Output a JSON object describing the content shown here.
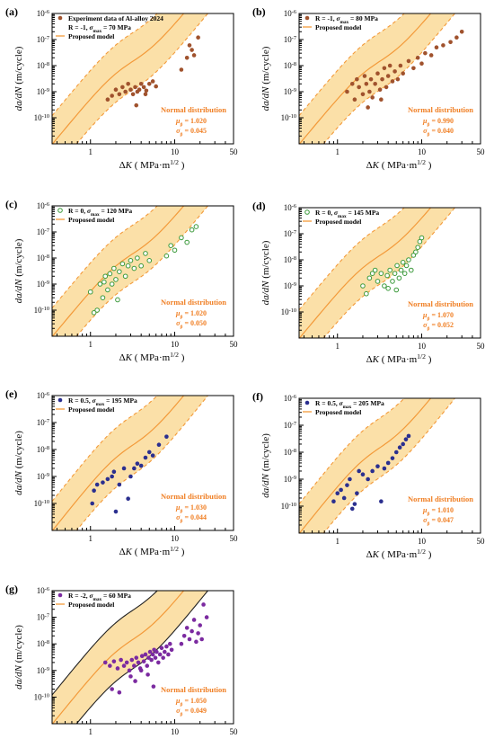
{
  "colors": {
    "band_fill": "#fbe0a8",
    "curve": "#f39a3a",
    "dist_text": "#f07f24",
    "axis": "#000000"
  },
  "chart_data": [
    {
      "type": "scatter",
      "panel_label": "(a)",
      "legend": [
        "Experiment data of Al-alloy 2024",
        "R = -1, σmax = 70 MPa",
        "Proposed model"
      ],
      "xlabel": "ΔK ( MPa·m^1/2 )",
      "ylabel": "da/dN (m/cycle)",
      "x_scale": "log",
      "y_scale": "log",
      "xlim": [
        0.35,
        50
      ],
      "ylim": [
        1e-11,
        1e-06
      ],
      "x_ticks": [
        "1",
        "10",
        "50"
      ],
      "y_ticks": [
        "10^-10",
        "10^-9",
        "10^-8",
        "10^-7",
        "10^-6"
      ],
      "annotation": {
        "title": "Normal distribution",
        "mu": "μβ = 1.020",
        "sigma": "σβ = 0.045"
      },
      "marker": {
        "style": "filled",
        "color": "#a0522d"
      },
      "band_style": "dashed",
      "points": [
        [
          1.6,
          5e-10
        ],
        [
          1.8,
          7e-10
        ],
        [
          2.0,
          1.2e-09
        ],
        [
          2.2,
          8e-10
        ],
        [
          2.4,
          1.5e-09
        ],
        [
          2.6,
          1e-09
        ],
        [
          2.8,
          2e-09
        ],
        [
          3.0,
          1.2e-09
        ],
        [
          3.2,
          8e-10
        ],
        [
          3.4,
          1.5e-09
        ],
        [
          3.6,
          1e-09
        ],
        [
          3.8,
          1.2e-09
        ],
        [
          4.0,
          2e-09
        ],
        [
          4.3,
          1.5e-09
        ],
        [
          4.6,
          1.1e-09
        ],
        [
          5.0,
          2e-09
        ],
        [
          5.5,
          2.5e-09
        ],
        [
          6.0,
          1.6e-09
        ],
        [
          4.5,
          8e-10
        ],
        [
          3.5,
          3e-10
        ],
        [
          12,
          7e-09
        ],
        [
          14,
          2e-08
        ],
        [
          15,
          6e-08
        ],
        [
          17,
          2.5e-08
        ],
        [
          19,
          1.2e-07
        ],
        [
          16,
          4e-08
        ]
      ]
    },
    {
      "type": "scatter",
      "panel_label": "(b)",
      "legend": [
        "R = -1, σmax = 80 MPa",
        "Proposed model"
      ],
      "xlabel": "ΔK ( MPa·m^1/2 )",
      "ylabel": "da/dN (m/cycle)",
      "x_scale": "log",
      "y_scale": "log",
      "xlim": [
        0.35,
        50
      ],
      "ylim": [
        1e-11,
        1e-06
      ],
      "x_ticks": [
        "1",
        "10",
        "50"
      ],
      "y_ticks": [
        "10^-10",
        "10^-9",
        "10^-8",
        "10^-7",
        "10^-6"
      ],
      "annotation": {
        "title": "Normal distribution",
        "mu": "μβ = 0.990",
        "sigma": "σβ = 0.040"
      },
      "marker": {
        "style": "filled",
        "color": "#a0522d"
      },
      "band_style": "dashed",
      "points": [
        [
          1.3,
          1e-09
        ],
        [
          1.5,
          2e-09
        ],
        [
          1.6,
          5e-10
        ],
        [
          1.7,
          3e-09
        ],
        [
          1.8,
          1.5e-09
        ],
        [
          2.0,
          8e-10
        ],
        [
          2.1,
          4e-09
        ],
        [
          2.2,
          2e-09
        ],
        [
          2.4,
          1e-09
        ],
        [
          2.5,
          3e-09
        ],
        [
          2.6,
          6e-10
        ],
        [
          2.8,
          2e-09
        ],
        [
          3.0,
          5e-09
        ],
        [
          3.2,
          1.2e-09
        ],
        [
          3.4,
          3e-09
        ],
        [
          3.6,
          8e-09
        ],
        [
          3.8,
          1.5e-09
        ],
        [
          4.0,
          4e-09
        ],
        [
          4.2,
          1e-08
        ],
        [
          4.5,
          2.5e-09
        ],
        [
          4.8,
          6e-09
        ],
        [
          5.2,
          3e-09
        ],
        [
          5.6,
          1e-08
        ],
        [
          6.0,
          5e-09
        ],
        [
          3.3,
          5e-10
        ],
        [
          2.3,
          2.5e-10
        ],
        [
          7,
          1.5e-08
        ],
        [
          8,
          8e-09
        ],
        [
          9,
          2e-08
        ],
        [
          10,
          1.2e-08
        ],
        [
          11,
          3e-08
        ],
        [
          13,
          2.5e-08
        ],
        [
          15,
          5e-08
        ],
        [
          18,
          6e-08
        ],
        [
          22,
          8e-08
        ],
        [
          26,
          1.2e-07
        ],
        [
          30,
          2e-07
        ]
      ]
    },
    {
      "type": "scatter",
      "panel_label": "(c)",
      "legend": [
        "R = 0, σmax = 120 MPa",
        "Proposed model"
      ],
      "xlabel": "ΔK ( MPa·m^1/2 )",
      "ylabel": "da/dN (m/cycle)",
      "x_scale": "log",
      "y_scale": "log",
      "xlim": [
        0.35,
        50
      ],
      "ylim": [
        1e-11,
        1e-06
      ],
      "x_ticks": [
        "1",
        "10",
        "50"
      ],
      "y_ticks": [
        "10^-10",
        "10^-9",
        "10^-8",
        "10^-7",
        "10^-6"
      ],
      "annotation": {
        "title": "Normal distribution",
        "mu": "μβ = 1.020",
        "sigma": "σβ = 0.050"
      },
      "marker": {
        "style": "open",
        "color": "#3c9a3c"
      },
      "band_style": "dashed",
      "points": [
        [
          1.0,
          5e-10
        ],
        [
          1.1,
          8e-11
        ],
        [
          1.2,
          1e-10
        ],
        [
          1.3,
          1e-09
        ],
        [
          1.4,
          3e-10
        ],
        [
          1.5,
          2e-09
        ],
        [
          1.6,
          6e-10
        ],
        [
          1.7,
          2.5e-09
        ],
        [
          1.8,
          1e-09
        ],
        [
          1.9,
          4e-09
        ],
        [
          2.0,
          1.5e-09
        ],
        [
          2.2,
          3e-09
        ],
        [
          2.4,
          6e-09
        ],
        [
          2.6,
          2e-09
        ],
        [
          2.8,
          5e-09
        ],
        [
          3.0,
          8e-09
        ],
        [
          3.3,
          4e-09
        ],
        [
          3.6,
          1e-08
        ],
        [
          4.0,
          5e-09
        ],
        [
          4.5,
          1.5e-08
        ],
        [
          5.0,
          8e-09
        ],
        [
          2.1,
          2.5e-10
        ],
        [
          1.45,
          1.2e-09
        ],
        [
          8,
          1.2e-08
        ],
        [
          9,
          3e-08
        ],
        [
          10,
          2e-08
        ],
        [
          12,
          6e-08
        ],
        [
          14,
          4e-08
        ],
        [
          16,
          1.2e-07
        ],
        [
          18,
          1.6e-07
        ]
      ]
    },
    {
      "type": "scatter",
      "panel_label": "(d)",
      "legend": [
        "R = 0, σmax = 145 MPa",
        "Proposed model"
      ],
      "xlabel": "ΔK ( MPa·m^1/2 )",
      "ylabel": "da/dN (m/cycle)",
      "x_scale": "log",
      "y_scale": "log",
      "xlim": [
        0.35,
        50
      ],
      "ylim": [
        1e-11,
        1e-06
      ],
      "x_ticks": [
        "1",
        "10",
        "50"
      ],
      "y_ticks": [
        "10^-10",
        "10^-9",
        "10^-8",
        "10^-7",
        "10^-6"
      ],
      "annotation": {
        "title": "Normal distribution",
        "mu": "μβ = 1.070",
        "sigma": "σβ = 0.052"
      },
      "marker": {
        "style": "open",
        "color": "#3c9a3c"
      },
      "band_style": "dashed",
      "points": [
        [
          2.0,
          1e-09
        ],
        [
          2.2,
          5e-10
        ],
        [
          2.4,
          2e-09
        ],
        [
          2.6,
          3e-09
        ],
        [
          2.8,
          4e-09
        ],
        [
          3.0,
          1.5e-09
        ],
        [
          3.3,
          3e-09
        ],
        [
          3.6,
          1e-09
        ],
        [
          3.9,
          2.5e-09
        ],
        [
          4.2,
          4e-09
        ],
        [
          4.5,
          1.5e-09
        ],
        [
          4.8,
          3e-09
        ],
        [
          5.1,
          6e-09
        ],
        [
          5.4,
          2e-09
        ],
        [
          5.7,
          4e-09
        ],
        [
          6.0,
          8e-09
        ],
        [
          6.3,
          3e-09
        ],
        [
          6.6,
          6e-09
        ],
        [
          7.0,
          1e-08
        ],
        [
          7.5,
          4e-09
        ],
        [
          8.0,
          1.5e-08
        ],
        [
          8.5,
          2e-08
        ],
        [
          9.0,
          3e-08
        ],
        [
          9.5,
          5e-08
        ],
        [
          10.0,
          7e-08
        ],
        [
          5.0,
          7e-10
        ],
        [
          4.0,
          8e-10
        ]
      ]
    },
    {
      "type": "scatter",
      "panel_label": "(e)",
      "legend": [
        "R = 0.5, σmax = 195 MPa",
        "Proposed model"
      ],
      "xlabel": "ΔK ( MPa·m^1/2 )",
      "ylabel": "da/dN (m/cycle)",
      "x_scale": "log",
      "y_scale": "log",
      "xlim": [
        0.35,
        50
      ],
      "ylim": [
        1e-11,
        1e-06
      ],
      "x_ticks": [
        "1",
        "10",
        "50"
      ],
      "y_ticks": [
        "10^-10",
        "10^-9",
        "10^-8",
        "10^-7",
        "10^-6"
      ],
      "annotation": {
        "title": "Normal distribution",
        "mu": "μβ = 1.030",
        "sigma": "σβ = 0.044"
      },
      "marker": {
        "style": "filled",
        "color": "#2b2f8f"
      },
      "band_style": "dashed",
      "points": [
        [
          1.05,
          1e-10
        ],
        [
          1.1,
          3e-10
        ],
        [
          1.2,
          5e-10
        ],
        [
          1.4,
          6e-10
        ],
        [
          1.6,
          8e-10
        ],
        [
          1.8,
          1e-09
        ],
        [
          2.0,
          5e-11
        ],
        [
          2.2,
          5e-10
        ],
        [
          2.5,
          2e-09
        ],
        [
          2.8,
          1.5e-10
        ],
        [
          3.0,
          1e-09
        ],
        [
          3.3,
          2e-09
        ],
        [
          3.6,
          3e-09
        ],
        [
          4.0,
          2.5e-09
        ],
        [
          4.5,
          5e-09
        ],
        [
          5.0,
          8e-09
        ],
        [
          5.5,
          6e-09
        ],
        [
          6.5,
          1.5e-08
        ],
        [
          8.0,
          3e-08
        ],
        [
          1.9,
          1.5e-09
        ]
      ]
    },
    {
      "type": "scatter",
      "panel_label": "(f)",
      "legend": [
        "R = 0.5, σmax = 205 MPa",
        "Proposed model"
      ],
      "xlabel": "ΔK ( MPa·m^1/2 )",
      "ylabel": "da/dN (m/cycle)",
      "x_scale": "log",
      "y_scale": "log",
      "xlim": [
        0.35,
        50
      ],
      "ylim": [
        1e-11,
        1e-06
      ],
      "x_ticks": [
        "1",
        "10",
        "50"
      ],
      "y_ticks": [
        "10^-10",
        "10^-9",
        "10^-8",
        "10^-7",
        "10^-6"
      ],
      "annotation": {
        "title": "Normal distribution",
        "mu": "μβ = 1.010",
        "sigma": "σβ = 0.047"
      },
      "marker": {
        "style": "filled",
        "color": "#2b2f8f"
      },
      "band_style": "dashed",
      "points": [
        [
          0.9,
          1.5e-10
        ],
        [
          1.0,
          3e-10
        ],
        [
          1.1,
          4e-10
        ],
        [
          1.2,
          2e-10
        ],
        [
          1.3,
          6e-10
        ],
        [
          1.4,
          1e-09
        ],
        [
          1.5,
          8e-11
        ],
        [
          1.6,
          1.2e-10
        ],
        [
          1.7,
          3e-10
        ],
        [
          2.0,
          1.5e-09
        ],
        [
          2.3,
          1e-09
        ],
        [
          2.6,
          2e-09
        ],
        [
          3.0,
          3e-09
        ],
        [
          3.3,
          1.5e-10
        ],
        [
          3.6,
          2.5e-09
        ],
        [
          4.0,
          4e-09
        ],
        [
          4.5,
          6e-09
        ],
        [
          5.0,
          1e-08
        ],
        [
          5.5,
          1.5e-08
        ],
        [
          6.0,
          2e-08
        ],
        [
          6.5,
          3e-08
        ],
        [
          7.0,
          4e-08
        ],
        [
          1.8,
          2e-09
        ]
      ]
    },
    {
      "type": "scatter",
      "panel_label": "(g)",
      "legend": [
        "R = -2, σmax = 60 MPa",
        "Proposed model"
      ],
      "xlabel": "ΔK ( MPa·m^1/2 )",
      "ylabel": "da/dN (m/cycle)",
      "x_scale": "log",
      "y_scale": "log",
      "xlim": [
        0.35,
        50
      ],
      "ylim": [
        1e-11,
        1e-06
      ],
      "x_ticks": [
        "1",
        "10",
        "50"
      ],
      "y_ticks": [
        "10^-10",
        "10^-9",
        "10^-8",
        "10^-7",
        "10^-6"
      ],
      "annotation": {
        "title": "Normal distribution",
        "mu": "μβ = 1.050",
        "sigma": "σβ = 0.049"
      },
      "marker": {
        "style": "filled",
        "color": "#7b2aa0"
      },
      "band_style": "solid",
      "points": [
        [
          1.5,
          2e-09
        ],
        [
          1.7,
          1.5e-09
        ],
        [
          1.9,
          2.2e-09
        ],
        [
          2.1,
          1.2e-09
        ],
        [
          2.3,
          2.5e-09
        ],
        [
          2.5,
          1.5e-09
        ],
        [
          2.7,
          2e-09
        ],
        [
          2.9,
          1e-09
        ],
        [
          3.1,
          2.5e-09
        ],
        [
          3.3,
          1.5e-09
        ],
        [
          3.5,
          3e-09
        ],
        [
          3.7,
          2e-09
        ],
        [
          3.9,
          1.2e-09
        ],
        [
          4.1,
          3.5e-09
        ],
        [
          4.3,
          2.2e-09
        ],
        [
          4.5,
          4e-09
        ],
        [
          4.7,
          1.5e-09
        ],
        [
          4.9,
          3e-09
        ],
        [
          5.1,
          5e-09
        ],
        [
          5.3,
          2.5e-09
        ],
        [
          5.5,
          4e-09
        ],
        [
          5.7,
          6e-09
        ],
        [
          5.9,
          3e-09
        ],
        [
          6.1,
          5e-09
        ],
        [
          6.4,
          2e-09
        ],
        [
          6.7,
          4e-09
        ],
        [
          7.0,
          7e-09
        ],
        [
          7.3,
          3e-09
        ],
        [
          7.6,
          5e-09
        ],
        [
          8.0,
          8e-09
        ],
        [
          8.4,
          4e-09
        ],
        [
          8.8,
          1e-08
        ],
        [
          9.2,
          6e-09
        ],
        [
          4.0,
          1e-09
        ],
        [
          3.0,
          6e-10
        ],
        [
          4.8,
          7e-10
        ],
        [
          2.2,
          1.5e-10
        ],
        [
          1.8,
          2e-10
        ],
        [
          5.6,
          2.5e-10
        ],
        [
          3.4,
          4e-10
        ],
        [
          12,
          1e-08
        ],
        [
          13,
          2e-08
        ],
        [
          14,
          4e-08
        ],
        [
          15,
          1.5e-08
        ],
        [
          16,
          3e-08
        ],
        [
          17,
          8e-08
        ],
        [
          18,
          1.2e-08
        ],
        [
          20,
          5e-08
        ],
        [
          22,
          3e-07
        ],
        [
          24,
          1e-07
        ],
        [
          21,
          1.5e-08
        ],
        [
          19,
          2.5e-08
        ]
      ]
    }
  ]
}
